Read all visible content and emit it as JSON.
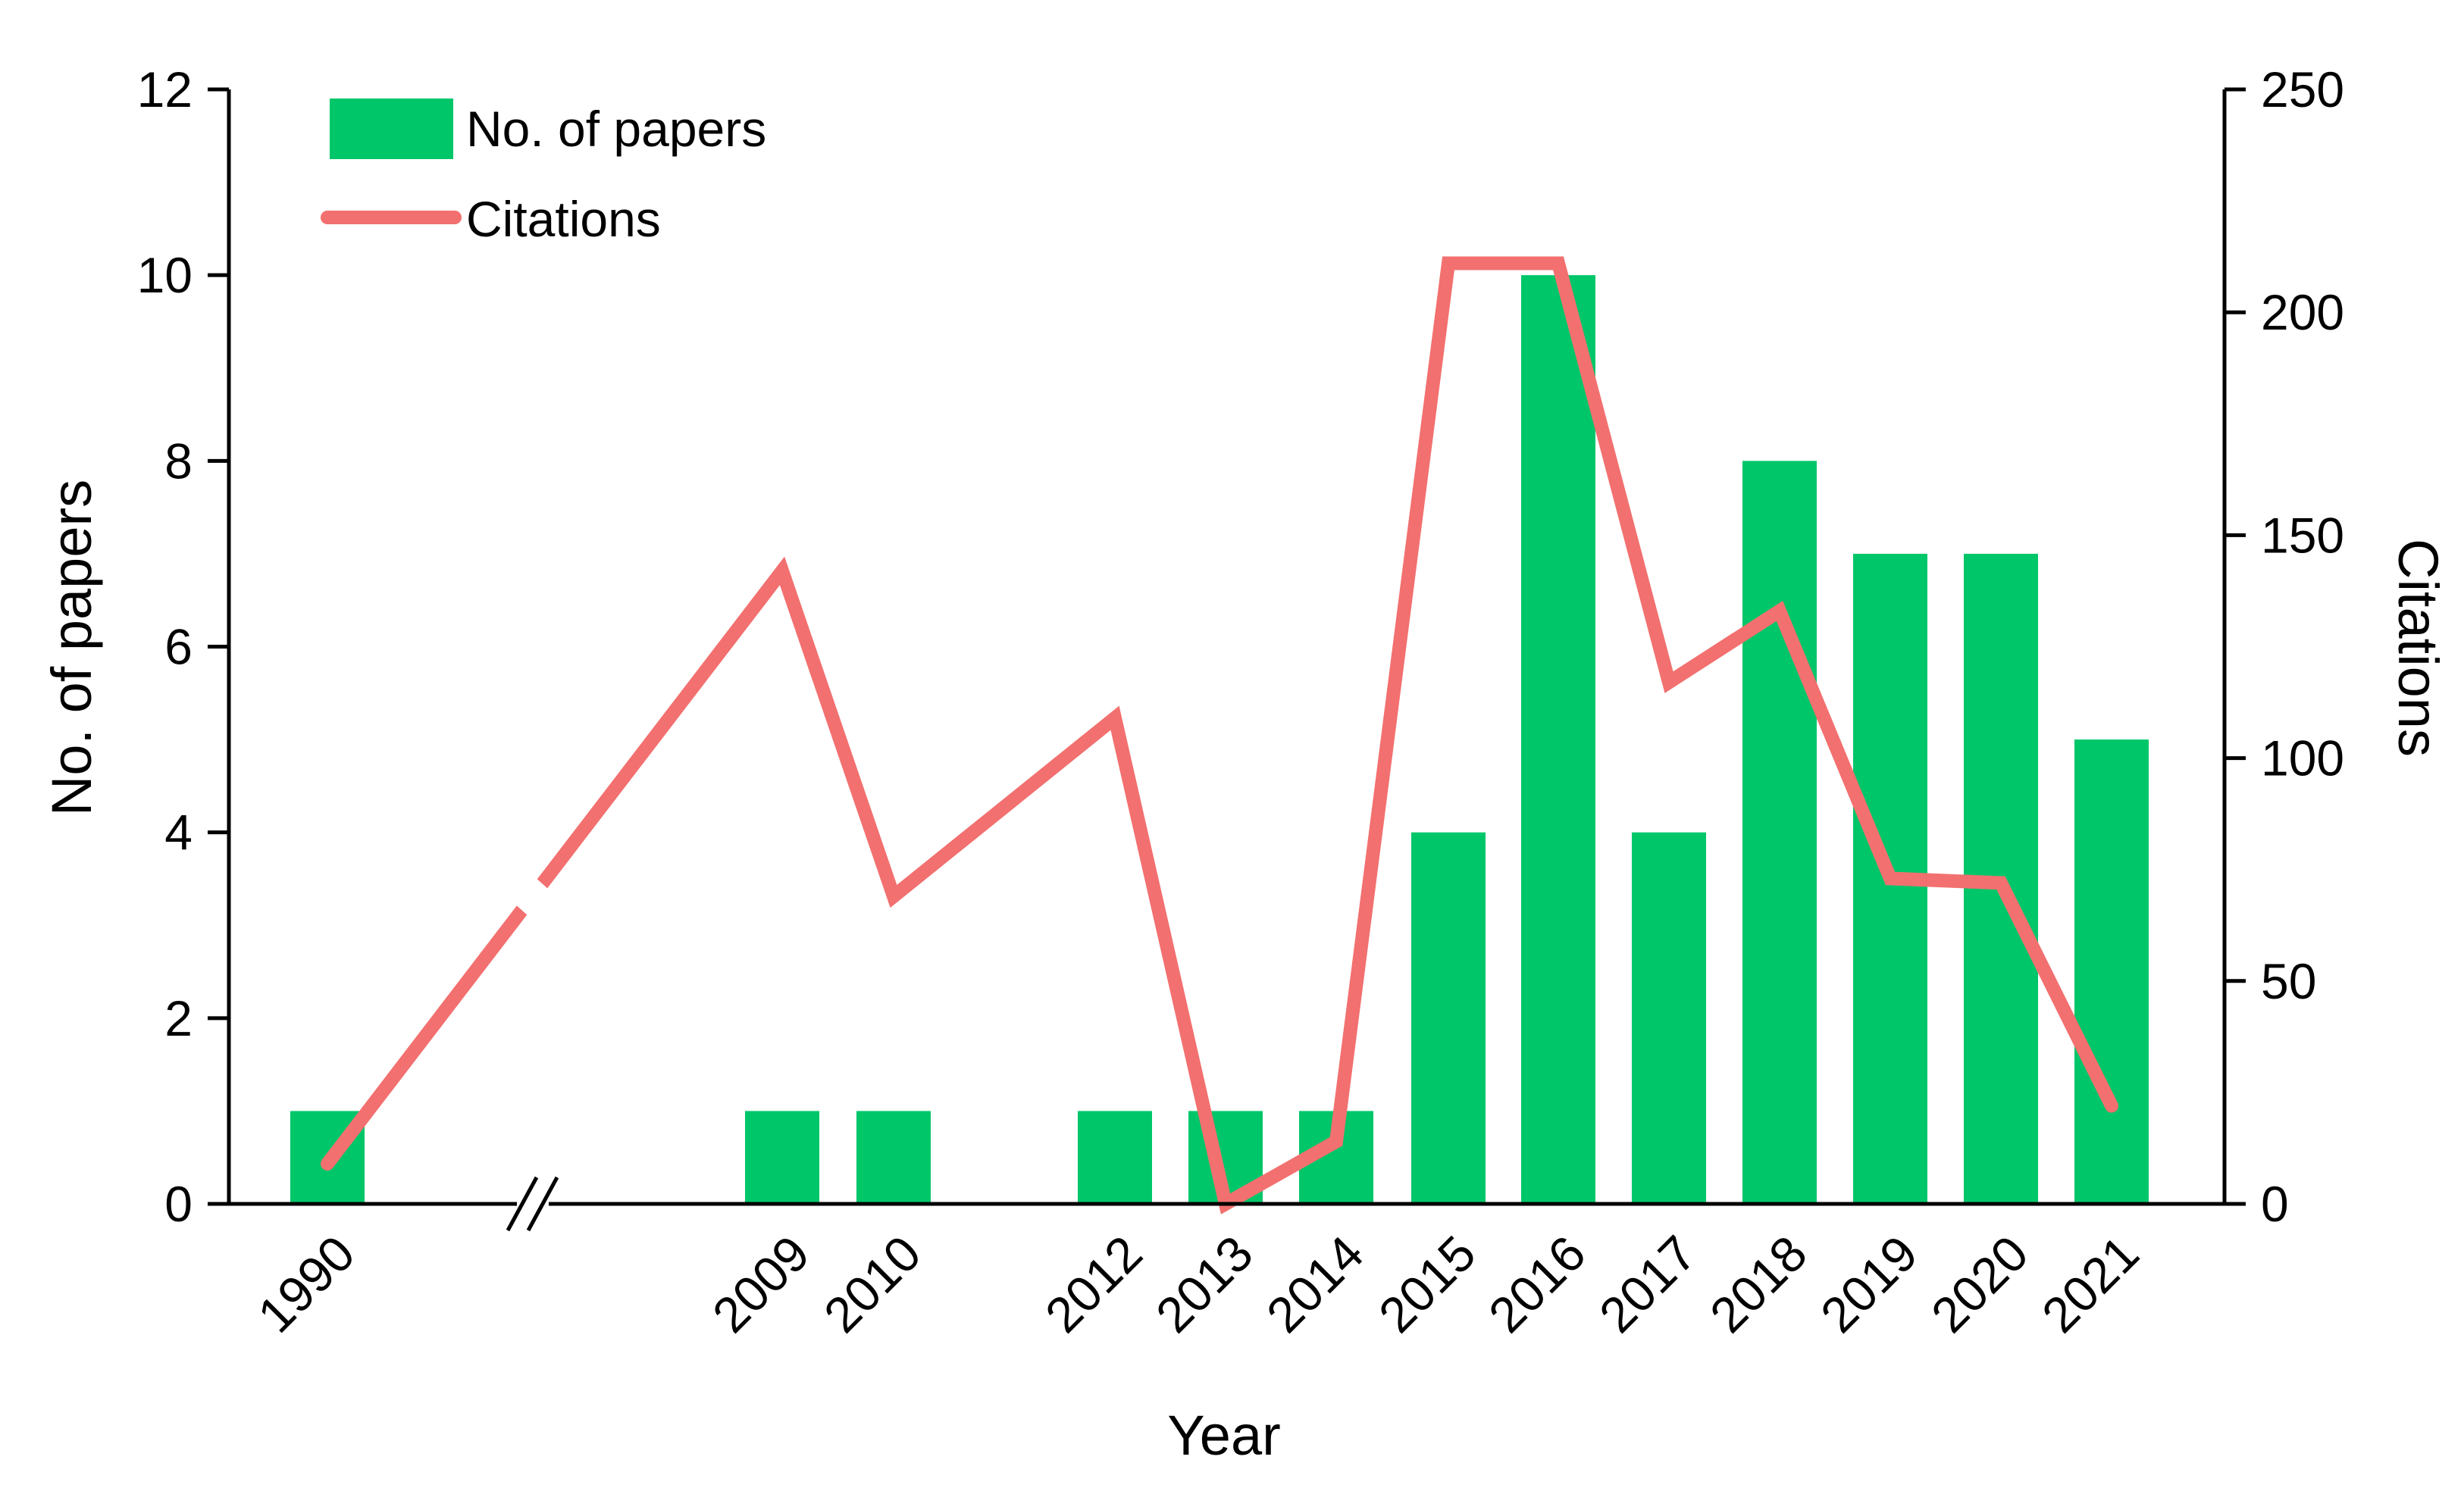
{
  "chart_data": {
    "type": "bar",
    "categories": [
      "1990",
      "2009",
      "2010",
      "2012",
      "2013",
      "2014",
      "2015",
      "2016",
      "2017",
      "2018",
      "2019",
      "2020",
      "2021"
    ],
    "series": [
      {
        "name": "No. of papers",
        "kind": "bar",
        "axis": "left",
        "color": "#00c66a",
        "values": [
          1,
          1,
          1,
          1,
          1,
          1,
          4,
          10,
          4,
          8,
          7,
          7,
          5
        ]
      },
      {
        "name": "Citations",
        "kind": "line",
        "axis": "right",
        "color": "#f2706f",
        "values": [
          9,
          142,
          69,
          109,
          0,
          14,
          211,
          211,
          117,
          133,
          73,
          72,
          22
        ]
      }
    ],
    "xlabel": "Year",
    "ylabel": "No. of papers",
    "y2label": "Citations",
    "ylim": [
      0,
      12
    ],
    "yticks": [
      0,
      2,
      4,
      6,
      8,
      10,
      12
    ],
    "y2lim": [
      0,
      250
    ],
    "y2ticks": [
      0,
      50,
      100,
      150,
      200,
      250
    ],
    "axis_break": "between 1990 and 2009",
    "grid": false,
    "legend": "top-left"
  }
}
